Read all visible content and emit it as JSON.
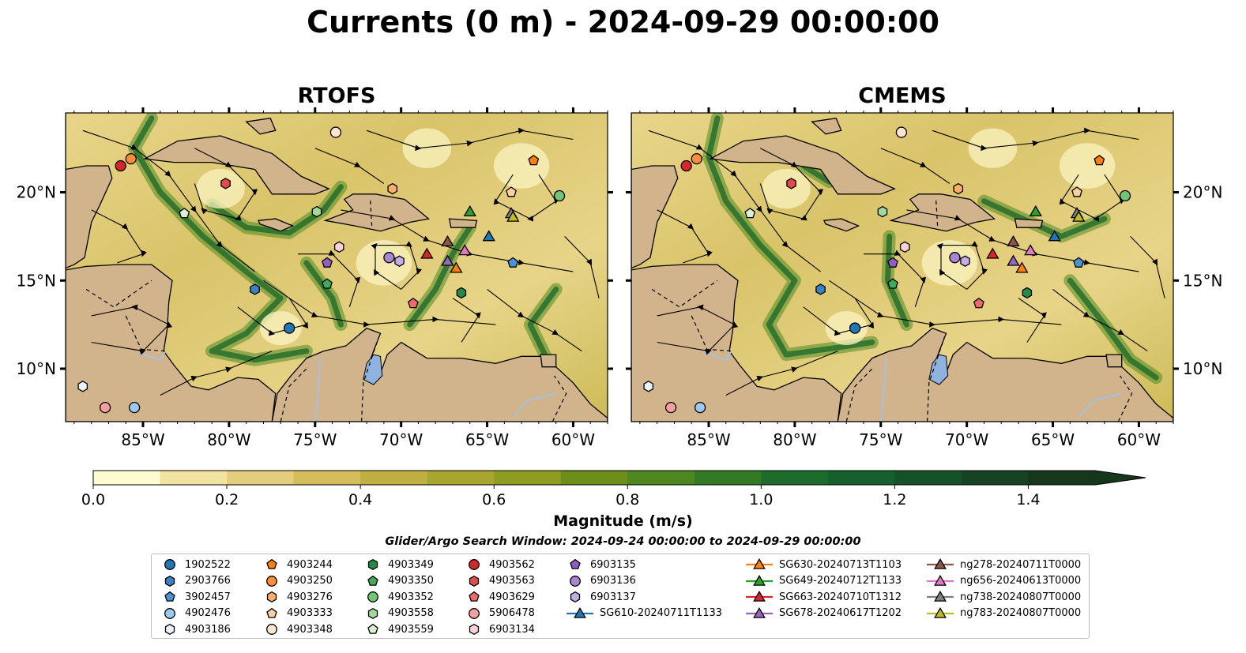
{
  "title": "Currents (0 m) - 2024-09-29 00:00:00",
  "panels": [
    {
      "name": "RTOFS"
    },
    {
      "name": "CMEMS"
    }
  ],
  "axes": {
    "lon_ticks": [
      "85°W",
      "80°W",
      "75°W",
      "70°W",
      "65°W",
      "60°W"
    ],
    "lat_ticks": [
      "20°N",
      "15°N",
      "10°N"
    ],
    "lon_range": [
      -89.5,
      -58.0
    ],
    "lat_range": [
      7.0,
      24.5
    ]
  },
  "colorbar": {
    "label": "Magnitude (m/s)",
    "min": 0.0,
    "max": 1.5,
    "extend": "max",
    "ticks": [
      "0.0",
      "0.2",
      "0.4",
      "0.6",
      "0.8",
      "1.0",
      "1.2",
      "1.4"
    ],
    "colors": [
      "#fefbd0",
      "#f3e3a0",
      "#e4cd7c",
      "#d4bd5a",
      "#c0b043",
      "#a8a530",
      "#8e9c22",
      "#6e8e1a",
      "#4e8720",
      "#347a26",
      "#1e6c2c",
      "#16602e",
      "#155228",
      "#164322",
      "#17371d"
    ]
  },
  "search_window": "Glider/Argo Search Window: 2024-09-24 00:00:00 to 2024-09-29 00:00:00",
  "colors": {
    "land": "#d2b48c",
    "lake": "#8fb2de",
    "river": "#a4c0e2",
    "coast": "#000000"
  },
  "legend": [
    {
      "label": "1902522",
      "shape": "circle",
      "color": "#1f77b4"
    },
    {
      "label": "2903766",
      "shape": "hexagon",
      "color": "#3b82c4"
    },
    {
      "label": "3902457",
      "shape": "pentagon",
      "color": "#4c93d6"
    },
    {
      "label": "4902476",
      "shape": "circle",
      "color": "#9ec9ee"
    },
    {
      "label": "4903186",
      "shape": "hexagon",
      "color": "#e8f2fb"
    },
    {
      "label": "4903244",
      "shape": "pentagon",
      "color": "#ff7f0e"
    },
    {
      "label": "4903250",
      "shape": "circle",
      "color": "#fd8d3c"
    },
    {
      "label": "4903276",
      "shape": "hexagon",
      "color": "#fdae6b"
    },
    {
      "label": "4903333",
      "shape": "pentagon",
      "color": "#fdd0a2"
    },
    {
      "label": "4903348",
      "shape": "circle",
      "color": "#fee6ce"
    },
    {
      "label": "4903349",
      "shape": "hexagon",
      "color": "#238b45"
    },
    {
      "label": "4903350",
      "shape": "pentagon",
      "color": "#41ab5d"
    },
    {
      "label": "4903352",
      "shape": "circle",
      "color": "#74c476"
    },
    {
      "label": "4903558",
      "shape": "hexagon",
      "color": "#a1d99b"
    },
    {
      "label": "4903559",
      "shape": "pentagon",
      "color": "#d9f0d3"
    },
    {
      "label": "4903562",
      "shape": "circle",
      "color": "#d62728"
    },
    {
      "label": "4903563",
      "shape": "hexagon",
      "color": "#e34a4a"
    },
    {
      "label": "4903629",
      "shape": "pentagon",
      "color": "#ef6b6b"
    },
    {
      "label": "5906478",
      "shape": "circle",
      "color": "#f4a0a0"
    },
    {
      "label": "6903134",
      "shape": "hexagon",
      "color": "#fcd2d2"
    },
    {
      "label": "6903135",
      "shape": "pentagon",
      "color": "#8e5fc0"
    },
    {
      "label": "6903136",
      "shape": "circle",
      "color": "#a886d2"
    },
    {
      "label": "6903137",
      "shape": "hexagon",
      "color": "#c6aee5"
    },
    {
      "label": "SG610-20240711T1133",
      "shape": "triangle-line",
      "color": "#1f77b4"
    },
    {
      "label": "SG630-20240713T1103",
      "shape": "triangle-line",
      "color": "#ff7f0e"
    },
    {
      "label": "SG649-20240712T1133",
      "shape": "triangle-line",
      "color": "#2ca02c"
    },
    {
      "label": "SG663-20240710T1312",
      "shape": "triangle-line",
      "color": "#d62728"
    },
    {
      "label": "SG678-20240617T1202",
      "shape": "triangle-line",
      "color": "#9467bd"
    },
    {
      "label": "ng278-20240711T0000",
      "shape": "triangle-line",
      "color": "#8c564b"
    },
    {
      "label": "ng656-20240613T0000",
      "shape": "triangle-line",
      "color": "#e377c2"
    },
    {
      "label": "ng738-20240807T0000",
      "shape": "triangle-line",
      "color": "#7f7f7f"
    },
    {
      "label": "ng783-20240807T0000",
      "shape": "triangle-line",
      "color": "#bcbd22"
    }
  ],
  "markers": [
    {
      "id": "1902522",
      "lon": -76.5,
      "lat": 12.3
    },
    {
      "id": "2903766",
      "lon": -78.5,
      "lat": 14.5
    },
    {
      "id": "3902457",
      "lon": -63.5,
      "lat": 16.0
    },
    {
      "id": "4902476",
      "lon": -85.5,
      "lat": 7.8
    },
    {
      "id": "4903186",
      "lon": -88.5,
      "lat": 9.0
    },
    {
      "id": "4903244",
      "lon": -62.3,
      "lat": 21.8
    },
    {
      "id": "4903250",
      "lon": -85.7,
      "lat": 21.9
    },
    {
      "id": "4903276",
      "lon": -70.5,
      "lat": 20.2
    },
    {
      "id": "4903333",
      "lon": -63.6,
      "lat": 20.0
    },
    {
      "id": "4903348",
      "lon": -73.8,
      "lat": 23.4
    },
    {
      "id": "4903349",
      "lon": -66.5,
      "lat": 14.3
    },
    {
      "id": "4903350",
      "lon": -74.3,
      "lat": 14.8
    },
    {
      "id": "4903352",
      "lon": -60.8,
      "lat": 19.8
    },
    {
      "id": "4903558",
      "lon": -74.9,
      "lat": 18.9
    },
    {
      "id": "4903559",
      "lon": -82.6,
      "lat": 18.8
    },
    {
      "id": "4903562",
      "lon": -86.3,
      "lat": 21.5
    },
    {
      "id": "4903563",
      "lon": -80.2,
      "lat": 20.5
    },
    {
      "id": "4903629",
      "lon": -69.3,
      "lat": 13.7
    },
    {
      "id": "5906478",
      "lon": -87.2,
      "lat": 7.8
    },
    {
      "id": "6903134",
      "lon": -73.6,
      "lat": 16.9
    },
    {
      "id": "6903135",
      "lon": -74.3,
      "lat": 16.0
    },
    {
      "id": "6903136",
      "lon": -70.7,
      "lat": 16.3
    },
    {
      "id": "6903137",
      "lon": -70.1,
      "lat": 16.1
    },
    {
      "id": "SG610-20240711T1133",
      "lon": -64.9,
      "lat": 17.5
    },
    {
      "id": "SG630-20240713T1103",
      "lon": -66.8,
      "lat": 15.7
    },
    {
      "id": "SG649-20240712T1133",
      "lon": -66.0,
      "lat": 18.9
    },
    {
      "id": "SG663-20240710T1312",
      "lon": -68.5,
      "lat": 16.5
    },
    {
      "id": "SG678-20240617T1202",
      "lon": -67.3,
      "lat": 16.1
    },
    {
      "id": "ng278-20240711T0000",
      "lon": -67.3,
      "lat": 17.2
    },
    {
      "id": "ng656-20240613T0000",
      "lon": -66.3,
      "lat": 16.7
    },
    {
      "id": "ng738-20240807T0000",
      "lon": -63.6,
      "lat": 18.8
    },
    {
      "id": "ng783-20240807T0000",
      "lon": -63.5,
      "lat": 18.6
    }
  ]
}
